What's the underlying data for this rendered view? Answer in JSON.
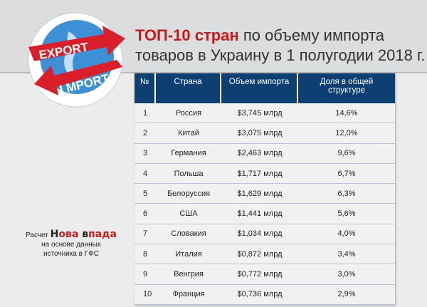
{
  "logo": {
    "export": "EXPORT",
    "import": "I MPORT"
  },
  "title": {
    "highlight": "ТОП-10 стран",
    "line1_rest": " по объему импорта",
    "line2": "товаров в Украину в 1 полугодии 2018 г."
  },
  "table": {
    "headers": [
      "№",
      "Страна",
      "Объем импорта",
      "Доля в общей структуре"
    ],
    "rows": [
      [
        "1",
        "Россия",
        "$3,745 млрд",
        "14,6%"
      ],
      [
        "2",
        "Китай",
        "$3,075 млрд",
        "12,0%"
      ],
      [
        "3",
        "Германия",
        "$2,463 млрд",
        "9,6%"
      ],
      [
        "4",
        "Польша",
        "$1,717 млрд",
        "6,7%"
      ],
      [
        "5",
        "Белоруссия",
        "$1,629 млрд",
        "6,3%"
      ],
      [
        "6",
        "США",
        "$1,441 млрд",
        "5,6%"
      ],
      [
        "7",
        "Словакия",
        "$1,034 млрд",
        "4,0%"
      ],
      [
        "8",
        "Италия",
        "$0,872 млрд",
        "3,4%"
      ],
      [
        "9",
        "Венгрия",
        "$0,772 млрд",
        "3,0%"
      ],
      [
        "10",
        "Франция",
        "$0,736 млрд",
        "2,9%"
      ]
    ]
  },
  "credit": {
    "prefix": "Расчет ",
    "brand_black1": "Н",
    "brand_red1": "ова ",
    "brand_black2": "в",
    "brand_red2": "пада",
    "line2": "на основе данных",
    "line3": "источника в ГФС"
  },
  "colors": {
    "header": "#0e3f73",
    "accent": "#c41a1a"
  }
}
